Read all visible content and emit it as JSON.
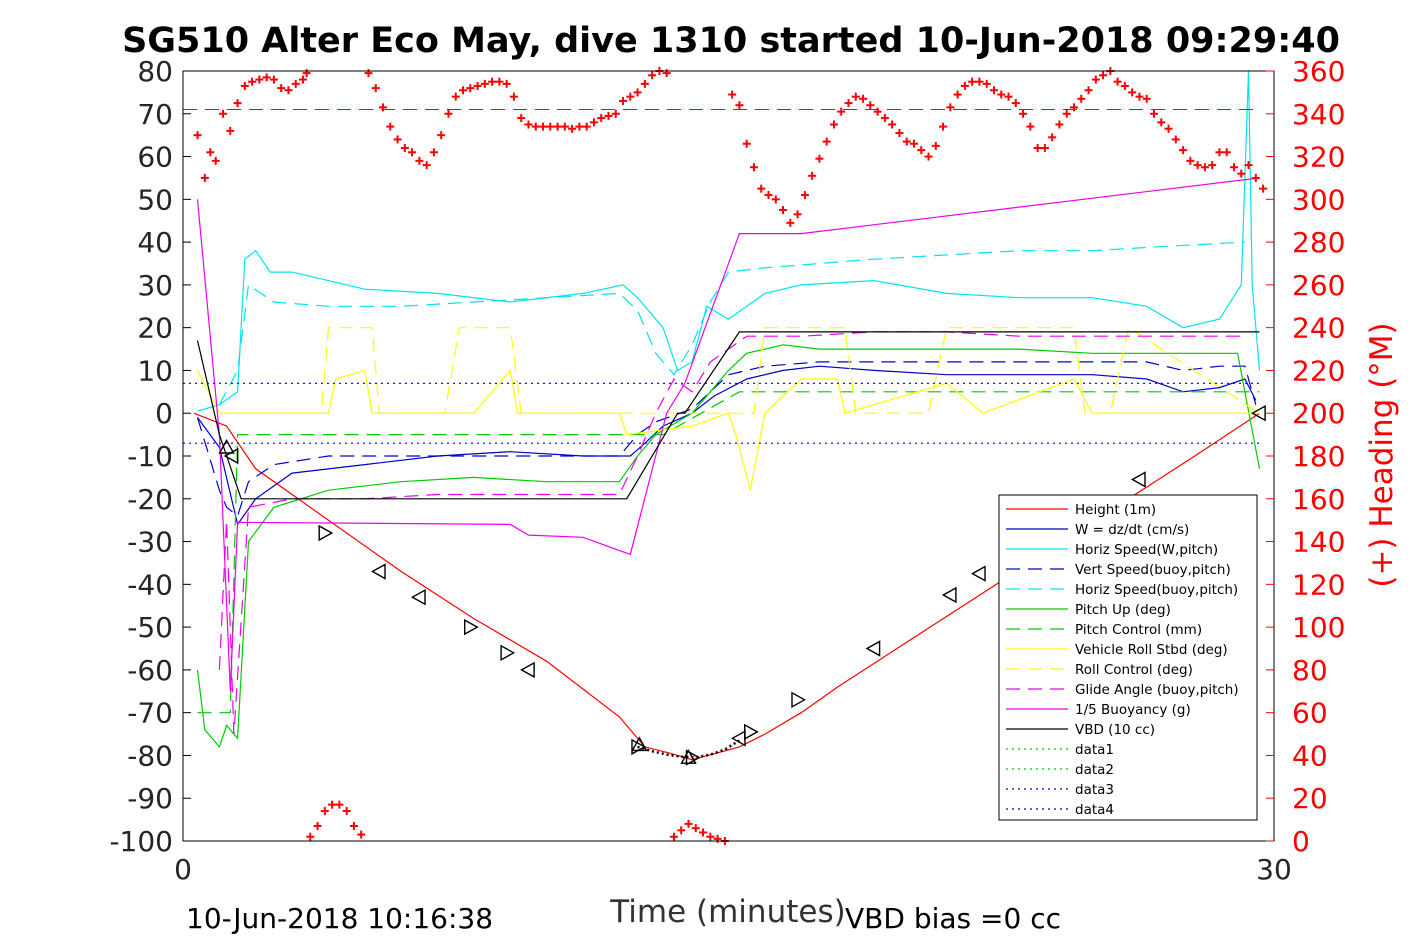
{
  "chart_data": {
    "type": "line",
    "title": "SG510 Alter Eco May, dive 1310 started 10-Jun-2018 09:29:40",
    "xlabel": "Time (minutes)",
    "ylabel_right": "(+) Heading (°M)",
    "xlim": [
      0,
      30
    ],
    "ylim": [
      -100,
      80
    ],
    "ylim_right": [
      0,
      360
    ],
    "x_ticks": [
      "0",
      "30"
    ],
    "y_ticks": [
      "-100",
      "-90",
      "-80",
      "-70",
      "-60",
      "-50",
      "-40",
      "-30",
      "-20",
      "-10",
      "0",
      "10",
      "20",
      "30",
      "40",
      "50",
      "60",
      "70",
      "80"
    ],
    "y_ticks_right": [
      "0",
      "20",
      "40",
      "60",
      "80",
      "100",
      "120",
      "140",
      "160",
      "180",
      "200",
      "220",
      "240",
      "260",
      "280",
      "300",
      "320",
      "340",
      "360"
    ],
    "footer_left": "10-Jun-2018 10:16:38",
    "footer_right": "VBD bias =0 cc",
    "legend_position": "lower-right",
    "grid": false,
    "series": [
      {
        "name": "Height (1m)",
        "color": "#ff0000",
        "style": "solid",
        "x": [
          0.3,
          1.2,
          2.0,
          4.0,
          6.0,
          8.0,
          10.0,
          12.0,
          12.7,
          13.4,
          14.0,
          15.3,
          16.0,
          17.0,
          18.0,
          20.0,
          22.0,
          24.0,
          26.0,
          28.0,
          29.6
        ],
        "y": [
          0,
          -3,
          -13,
          -25,
          -37,
          -48,
          -58,
          -71,
          -78,
          -79.5,
          -81,
          -78,
          -75,
          -70,
          -64,
          -53,
          -42,
          -31,
          -20,
          -9,
          0
        ]
      },
      {
        "name": "W = dz/dt (cm/s)",
        "color": "#0000cd",
        "style": "solid",
        "x": [
          0.4,
          1.0,
          1.5,
          2.0,
          3.0,
          5.0,
          7.0,
          9.0,
          11.0,
          12.3,
          12.7,
          13.2,
          14.0,
          14.6,
          15.5,
          16.5,
          17.5,
          19.0,
          21.0,
          23.0,
          25.0,
          26.5,
          27.5,
          28.5,
          29.2,
          29.5
        ],
        "y": [
          -1,
          -8,
          -26,
          -20,
          -14,
          -12,
          -10,
          -9,
          -10,
          -10,
          -7,
          -3,
          0,
          4,
          8,
          10,
          11,
          10,
          9,
          9,
          9,
          8,
          5,
          6,
          8,
          3
        ]
      },
      {
        "name": "Horiz Speed(W,pitch)",
        "color": "#00e5ee",
        "style": "solid",
        "x": [
          0.4,
          1.0,
          1.5,
          1.7,
          2.0,
          2.4,
          3.0,
          5.0,
          7.0,
          9.0,
          11.0,
          12.1,
          12.5,
          13.2,
          13.6,
          14.0,
          14.4,
          15.0,
          16.0,
          17.0,
          19.0,
          21.0,
          23.0,
          25.0,
          26.5,
          27.5,
          28.5,
          29.1,
          29.3,
          29.4,
          29.6
        ],
        "y": [
          0.5,
          2,
          5,
          36,
          38,
          33,
          33,
          29,
          28,
          26,
          28,
          30,
          27,
          20,
          10,
          12,
          25,
          22,
          28,
          30,
          31,
          28,
          27,
          27,
          25,
          20,
          22,
          30,
          80,
          30,
          10
        ]
      },
      {
        "name": "Vert Speed(buoy,pitch)",
        "color": "#0000cd",
        "style": "dashed",
        "x": [
          0.4,
          1.0,
          1.2,
          1.5,
          1.8,
          2.5,
          4.0,
          6.0,
          8.0,
          10.0,
          12.0,
          12.5,
          13.0,
          14.0,
          14.5,
          15.0,
          16.0,
          17.5,
          19.0,
          21.0,
          23.0,
          25.0,
          26.5,
          27.5,
          28.5,
          29.2,
          29.5
        ],
        "y": [
          -1,
          -18,
          -22,
          -24,
          -16,
          -12,
          -10,
          -10,
          -10,
          -10,
          -10,
          -5,
          -2,
          1,
          5,
          9,
          11,
          12,
          12,
          12,
          12,
          12,
          12,
          10,
          11,
          11,
          2
        ]
      },
      {
        "name": "Horiz Speed(buoy,pitch)",
        "color": "#00e5ee",
        "style": "dashed",
        "x": [
          1.0,
          1.5,
          1.8,
          2.5,
          4.0,
          6.0,
          8.0,
          10.0,
          12.0,
          12.5,
          13.0,
          13.5,
          14.0,
          14.5,
          15.0,
          16.0,
          17.5,
          19.0,
          21.0,
          23.0,
          25.0,
          27.0,
          29.2
        ],
        "y": [
          2,
          10,
          30,
          26,
          25,
          25,
          26,
          27,
          28,
          24,
          14,
          9,
          16,
          26,
          33,
          34,
          35,
          36,
          37,
          38,
          38,
          39,
          40
        ]
      },
      {
        "name": "Pitch Up (deg)",
        "color": "#00cc00",
        "style": "solid",
        "x": [
          0.4,
          0.6,
          1.0,
          1.2,
          1.5,
          1.8,
          2.5,
          4.0,
          6.0,
          8.0,
          10.0,
          12.0,
          12.5,
          13.0,
          14.0,
          14.5,
          15.0,
          15.5,
          16.5,
          17.5,
          19.0,
          21.0,
          23.0,
          25.0,
          27.0,
          29.0,
          29.6
        ],
        "y": [
          -60,
          -74,
          -78,
          -73,
          -76,
          -30,
          -22,
          -18,
          -16,
          -15,
          -16,
          -16,
          -10,
          -5,
          0,
          5,
          10,
          14,
          16,
          15,
          15,
          15,
          15,
          14,
          14,
          14,
          -13
        ]
      },
      {
        "name": "Pitch Control (mm)",
        "color": "#00cc00",
        "style": "dashed",
        "x": [
          0.4,
          1.0,
          1.3,
          1.5,
          12.2,
          13.2,
          15.3,
          29.6
        ],
        "y": [
          -70,
          -70,
          -70,
          -5,
          -5,
          -5,
          5,
          5
        ]
      },
      {
        "name": "Vehicle Roll Stbd (deg)",
        "color": "#ffff00",
        "style": "solid",
        "x": [
          0.4,
          0.7,
          1.0,
          1.5,
          4.0,
          4.2,
          5.0,
          5.2,
          6.0,
          6.3,
          7.5,
          8.0,
          9.0,
          9.2,
          12.0,
          12.2,
          14.0,
          15.0,
          15.2,
          15.6,
          16.0,
          17.0,
          18.0,
          18.2,
          21.0,
          22.0,
          24.5,
          25.0,
          26.0,
          27.0,
          29.6
        ],
        "y": [
          10,
          5,
          0,
          0,
          0,
          8,
          10,
          0,
          0,
          0,
          0,
          0,
          10,
          0,
          0,
          -5,
          -3,
          0,
          -5,
          -18,
          0,
          8,
          8,
          0,
          7,
          0,
          8,
          0,
          0,
          0,
          0
        ]
      },
      {
        "name": "Roll Control (deg)",
        "color": "#ffff00",
        "style": "dashed",
        "x": [
          1.0,
          1.3,
          3.8,
          4.0,
          5.2,
          5.4,
          7.2,
          7.6,
          9.0,
          9.3,
          12.2,
          13.5,
          15.7,
          16.0,
          18.2,
          18.5,
          20.5,
          21.0,
          24.5,
          24.8,
          25.5,
          26.0,
          29.6
        ],
        "y": [
          0,
          0,
          0,
          20,
          20,
          0,
          0,
          20,
          20,
          0,
          0,
          0,
          0,
          20,
          20,
          0,
          0,
          20,
          20,
          0,
          0,
          20,
          0
        ]
      },
      {
        "name": "Glide Angle (buoy,pitch)",
        "color": "#ee00ee",
        "style": "dashed",
        "x": [
          1.0,
          1.2,
          1.4,
          1.8,
          3.0,
          5.0,
          7.0,
          9.0,
          11.0,
          12.0,
          12.5,
          13.0,
          13.5,
          14.0,
          14.5,
          15.5,
          17.0,
          19.0,
          21.0,
          23.0,
          25.0,
          27.0,
          29.2
        ],
        "y": [
          -60,
          -25,
          -75,
          -22,
          -20,
          -20,
          -19,
          -19,
          -19,
          -19,
          -10,
          0,
          8,
          5,
          12,
          18,
          18,
          19,
          19,
          18,
          18,
          18,
          18
        ]
      },
      {
        "name": "1/5 Buoyancy (g)",
        "color": "#ee00ee",
        "style": "solid",
        "x": [
          0.4,
          1.0,
          1.3,
          1.5,
          9.0,
          9.5,
          11.0,
          12.3,
          13.3,
          13.8,
          15.3,
          17.0,
          29.6
        ],
        "y": [
          50,
          -5,
          -65,
          -25.5,
          -26,
          -28.5,
          -29,
          -33,
          0,
          7,
          42,
          42,
          55
        ]
      },
      {
        "name": "VBD (10 cc)",
        "color": "#000000",
        "style": "solid",
        "x": [
          0.4,
          1.0,
          1.6,
          12.2,
          13.6,
          13.8,
          15.3,
          29.6
        ],
        "y": [
          17,
          -5,
          -20,
          -20,
          0,
          0,
          19,
          19
        ]
      },
      {
        "name": "data1",
        "color": "#00cc00",
        "style": "dotted",
        "x": [
          0,
          0
        ],
        "y": [
          0,
          0
        ]
      },
      {
        "name": "data2",
        "color": "#00cc00",
        "style": "dotted",
        "x": [
          0,
          0
        ],
        "y": [
          0,
          0
        ]
      },
      {
        "name": "data3",
        "color": "#0000cd",
        "style": "dotted",
        "x": [
          0,
          29.6
        ],
        "y": [
          7,
          7
        ]
      },
      {
        "name": "data4",
        "color": "#0000cd",
        "style": "dotted",
        "x": [
          0,
          29.6
        ],
        "y": [
          -7,
          -7
        ]
      }
    ],
    "heading_ref": {
      "value": 342,
      "color": "#ff0000",
      "style": "dashed"
    },
    "heading": {
      "color": "#ff0000",
      "x": [
        0.4,
        0.6,
        0.75,
        0.9,
        1.1,
        1.3,
        1.5,
        1.7,
        1.9,
        2.1,
        2.3,
        2.5,
        2.7,
        2.9,
        3.1,
        3.3,
        3.4,
        3.5,
        3.7,
        3.9,
        4.1,
        4.3,
        4.5,
        4.7,
        4.9,
        5.1,
        5.3,
        5.5,
        5.7,
        5.9,
        6.1,
        6.3,
        6.5,
        6.7,
        6.9,
        7.1,
        7.3,
        7.5,
        7.7,
        7.9,
        8.1,
        8.3,
        8.5,
        8.7,
        8.9,
        9.1,
        9.3,
        9.5,
        9.7,
        9.9,
        10.1,
        10.3,
        10.5,
        10.7,
        10.9,
        11.1,
        11.3,
        11.5,
        11.7,
        11.9,
        12.1,
        12.3,
        12.5,
        12.7,
        12.9,
        13.1,
        13.3,
        13.5,
        13.7,
        13.9,
        14.1,
        14.3,
        14.5,
        14.7,
        14.9,
        15.1,
        15.3,
        15.5,
        15.7,
        15.9,
        16.1,
        16.3,
        16.5,
        16.7,
        16.9,
        17.1,
        17.3,
        17.5,
        17.7,
        17.9,
        18.1,
        18.3,
        18.5,
        18.7,
        18.9,
        19.1,
        19.3,
        19.5,
        19.7,
        19.9,
        20.1,
        20.3,
        20.5,
        20.7,
        20.9,
        21.1,
        21.3,
        21.5,
        21.7,
        21.9,
        22.1,
        22.3,
        22.5,
        22.7,
        22.9,
        23.1,
        23.3,
        23.5,
        23.7,
        23.9,
        24.1,
        24.3,
        24.5,
        24.7,
        24.9,
        25.1,
        25.3,
        25.5,
        25.7,
        25.9,
        26.1,
        26.3,
        26.5,
        26.7,
        26.9,
        27.1,
        27.3,
        27.5,
        27.7,
        27.9,
        28.1,
        28.3,
        28.5,
        28.7,
        28.9,
        29.1,
        29.3,
        29.5,
        29.7
      ],
      "y": [
        330,
        310,
        322,
        318,
        340,
        332,
        345,
        353,
        355,
        356,
        357,
        356,
        352,
        351,
        354,
        356,
        359,
        2,
        7,
        14,
        17,
        17,
        14,
        7,
        3,
        359,
        352,
        343,
        334,
        328,
        324,
        322,
        318,
        316,
        322,
        330,
        340,
        348,
        351,
        352,
        353,
        354,
        355,
        355,
        354,
        348,
        338,
        335,
        334,
        334,
        334,
        334,
        334,
        333,
        334,
        334,
        336,
        338,
        339,
        340,
        346,
        348,
        350,
        354,
        358,
        360,
        359,
        2,
        5,
        8,
        6,
        4,
        2,
        1,
        0,
        349,
        344,
        326,
        315,
        305,
        302,
        300,
        295,
        289,
        293,
        302,
        311,
        319,
        327,
        335,
        341,
        345,
        348,
        347,
        344,
        341,
        338,
        335,
        331,
        327,
        326,
        323,
        320,
        325,
        334,
        343,
        349,
        353,
        355,
        355,
        354,
        351,
        349,
        348,
        345,
        340,
        334,
        324,
        324,
        329,
        335,
        340,
        343,
        347,
        351,
        356,
        358,
        360,
        355,
        353,
        350,
        348,
        347,
        340,
        336,
        333,
        328,
        323,
        318,
        316,
        315,
        316,
        322,
        322,
        315,
        312,
        316,
        310,
        305
      ]
    },
    "markers": [
      {
        "x": 1.2,
        "y": -8,
        "shape": "up"
      },
      {
        "x": 1.35,
        "y": -10,
        "shape": "left"
      },
      {
        "x": 3.9,
        "y": -28,
        "shape": "right"
      },
      {
        "x": 5.4,
        "y": -37,
        "shape": "left"
      },
      {
        "x": 6.5,
        "y": -43,
        "shape": "left"
      },
      {
        "x": 7.9,
        "y": -50,
        "shape": "right"
      },
      {
        "x": 8.9,
        "y": -56,
        "shape": "right"
      },
      {
        "x": 9.5,
        "y": -60,
        "shape": "left"
      },
      {
        "x": 12.5,
        "y": -78,
        "shape": "right"
      },
      {
        "x": 12.55,
        "y": -77.5,
        "shape": "up"
      },
      {
        "x": 13.9,
        "y": -80.5,
        "shape": "up"
      },
      {
        "x": 14.0,
        "y": -80.5,
        "shape": "right"
      },
      {
        "x": 15.3,
        "y": -76,
        "shape": "left"
      },
      {
        "x": 15.6,
        "y": -74.5,
        "shape": "right"
      },
      {
        "x": 16.9,
        "y": -67,
        "shape": "right"
      },
      {
        "x": 19.0,
        "y": -55,
        "shape": "left"
      },
      {
        "x": 21.1,
        "y": -42.5,
        "shape": "left"
      },
      {
        "x": 21.9,
        "y": -37.5,
        "shape": "left"
      },
      {
        "x": 26.3,
        "y": -15.5,
        "shape": "left"
      },
      {
        "x": 29.6,
        "y": 0,
        "shape": "left"
      }
    ],
    "pre_descent": {
      "x": [
        0.4,
        0.6,
        1.0,
        1.2,
        1.4,
        1.6,
        1.8,
        2.0
      ],
      "y": [
        0,
        -1,
        -1,
        -2,
        -3,
        -5,
        -8,
        -12
      ]
    }
  }
}
